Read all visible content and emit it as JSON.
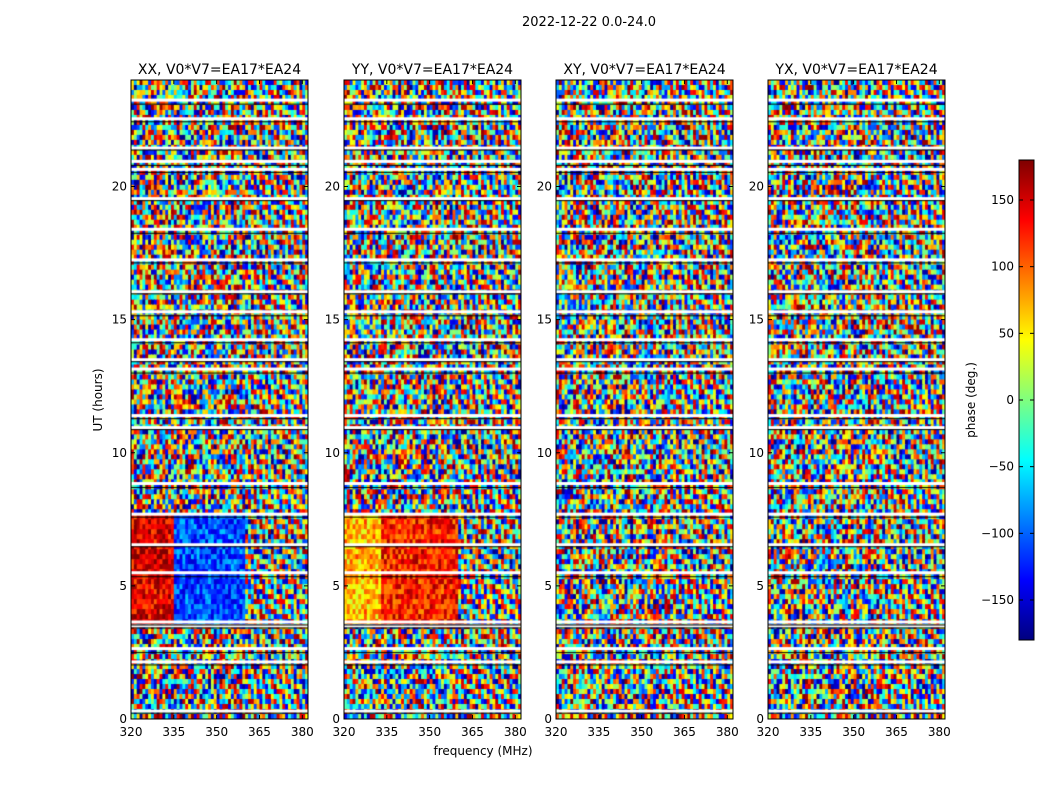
{
  "chart_data": {
    "type": "heatmap",
    "suptitle": "2022-12-22 0.0-24.0",
    "xlabel": "frequency (MHz)",
    "ylabel": "UT (hours)",
    "xlim": [
      320,
      382
    ],
    "ylim": [
      0,
      24
    ],
    "xticks": [
      "320",
      "335",
      "350",
      "365",
      "380"
    ],
    "xtick_values": [
      320,
      335,
      350,
      365,
      380
    ],
    "yticks": [
      "0",
      "5",
      "10",
      "15",
      "20"
    ],
    "ytick_values": [
      0,
      5,
      10,
      15,
      20
    ],
    "colorbar": {
      "label": "phase (deg.)",
      "range": [
        -180,
        180
      ],
      "ticks": [
        "150",
        "100",
        "50",
        "0",
        "−50",
        "−100",
        "−150"
      ],
      "tick_values": [
        150,
        100,
        50,
        0,
        -50,
        -100,
        -150
      ],
      "colormap": [
        "#00007f",
        "#0000ff",
        "#007fff",
        "#00ffff",
        "#7fff7f",
        "#ffff00",
        "#ff7f00",
        "#ff0000",
        "#7f0000"
      ]
    },
    "flagged_rows_ut": [
      0.35,
      2.2,
      2.7,
      3.55,
      3.7,
      5.55,
      6.6,
      7.75,
      8.9,
      11.0,
      11.45,
      13.2,
      13.55,
      14.3,
      15.35,
      16.1,
      17.3,
      18.45,
      19.6,
      20.7,
      21.0,
      21.5,
      22.6,
      23.3
    ],
    "panels": [
      {
        "title": "XX, V0*V7=EA17*EA24",
        "polarization": "XX",
        "baseline": "V0*V7=EA17*EA24"
      },
      {
        "title": "YY, V0*V7=EA17*EA24",
        "polarization": "YY",
        "baseline": "V0*V7=EA17*EA24"
      },
      {
        "title": "XY, V0*V7=EA17*EA24",
        "polarization": "XY",
        "baseline": "V0*V7=EA17*EA24"
      },
      {
        "title": "YX, V0*V7=EA17*EA24",
        "polarization": "YX",
        "baseline": "V0*V7=EA17*EA24"
      }
    ]
  }
}
